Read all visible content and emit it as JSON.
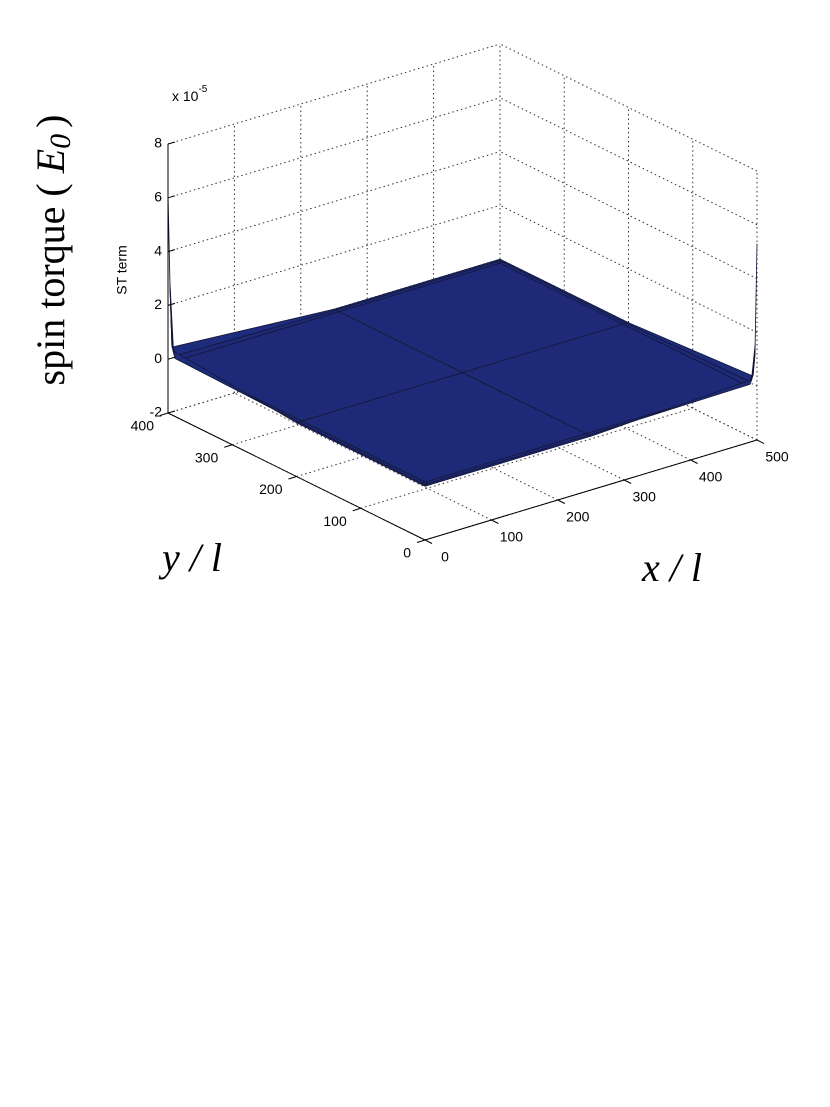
{
  "chart_data": {
    "type": "surface",
    "zlabel": "ST term",
    "z_multiplier": {
      "base": "x 10",
      "exponent": "-5"
    },
    "outer_zlabel": {
      "text": "spin torque (",
      "symbol": "E",
      "subscript": "0",
      "close": ")"
    },
    "xlabel": "x / l",
    "ylabel": "y / l",
    "x": [
      0,
      3,
      8,
      250,
      492,
      497,
      500
    ],
    "y": [
      0,
      3,
      8,
      200,
      392,
      397,
      400
    ],
    "z": [
      [
        0,
        0,
        0,
        0,
        0.3,
        1.2,
        5.3
      ],
      [
        0,
        0,
        0,
        0,
        0.1,
        0.4,
        1.5
      ],
      [
        0,
        0,
        0,
        0,
        0,
        0.1,
        0.3
      ],
      [
        0,
        0,
        0,
        0,
        0,
        0,
        0
      ],
      [
        0.4,
        0.1,
        0,
        0,
        0,
        0,
        0
      ],
      [
        2.8,
        0.5,
        0.1,
        0,
        0,
        0,
        0
      ],
      [
        6.2,
        2.8,
        0.4,
        0,
        0,
        0,
        0
      ]
    ],
    "xlim": [
      0,
      500
    ],
    "ylim": [
      0,
      400
    ],
    "zlim": [
      -2,
      8
    ],
    "xticks": [
      0,
      100,
      200,
      300,
      400,
      500
    ],
    "yticks": [
      0,
      100,
      200,
      300,
      400
    ],
    "zticks": [
      -2,
      0,
      2,
      4,
      6,
      8
    ],
    "grid": true,
    "colormap": [
      "#1e2a78",
      "#1e4fd0",
      "#20c0e0",
      "#80ffb0"
    ],
    "edge_color": "#141838"
  }
}
